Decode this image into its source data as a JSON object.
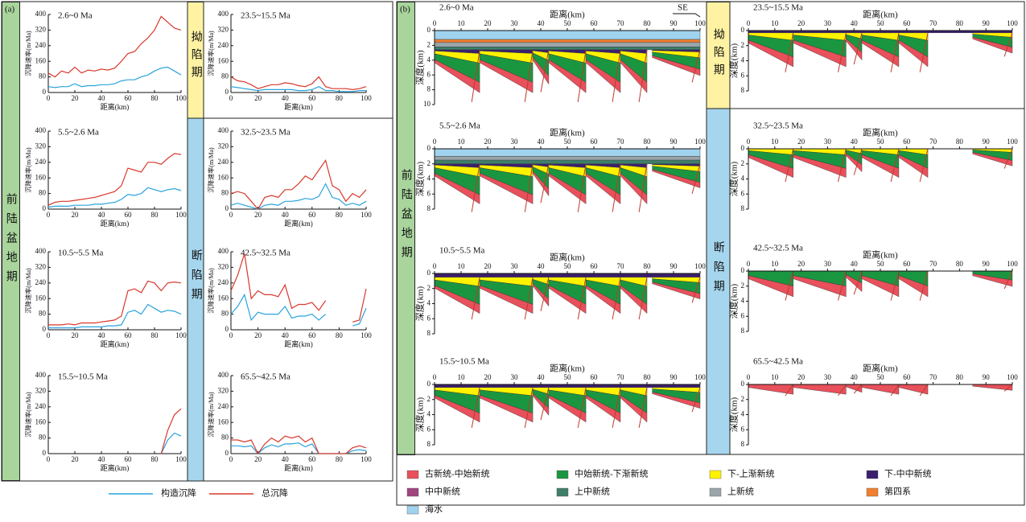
{
  "panel_a": {
    "label": "(a)",
    "stage_foreland": "前陆盆地期",
    "stage_sag": "拗陷期",
    "stage_rift": "断陷期"
  },
  "chart_data": [
    {
      "type": "line",
      "title": "2.6~0 Ma",
      "xlabel": "距离(km)",
      "ylabel": "沉降速率(m/Ma)",
      "x": [
        0,
        5,
        10,
        15,
        20,
        25,
        30,
        35,
        40,
        45,
        50,
        55,
        60,
        65,
        70,
        75,
        80,
        85,
        90,
        95,
        100
      ],
      "xlim": [
        0,
        100
      ],
      "ylim": [
        0,
        400
      ],
      "xticks": [
        0,
        20,
        40,
        60,
        80,
        100
      ],
      "yticks": [
        0,
        80,
        160,
        240,
        320,
        400
      ],
      "series": [
        {
          "name": "构造沉降",
          "color": "#2aa3dc",
          "values": [
            30,
            25,
            30,
            30,
            45,
            30,
            35,
            35,
            40,
            40,
            45,
            60,
            65,
            65,
            80,
            90,
            110,
            125,
            130,
            110,
            90
          ]
        },
        {
          "name": "总沉降",
          "color": "#d9382c",
          "values": [
            100,
            80,
            110,
            100,
            130,
            100,
            115,
            110,
            120,
            115,
            125,
            160,
            200,
            210,
            250,
            280,
            320,
            390,
            360,
            330,
            320
          ]
        }
      ]
    },
    {
      "type": "line",
      "title": "5.5~2.6 Ma",
      "xlabel": "距离(km)",
      "ylabel": "沉降速率(m/Ma)",
      "x": [
        0,
        5,
        10,
        15,
        20,
        25,
        30,
        35,
        40,
        45,
        50,
        55,
        60,
        65,
        70,
        75,
        80,
        85,
        90,
        95,
        100
      ],
      "xlim": [
        0,
        100
      ],
      "ylim": [
        0,
        400
      ],
      "xticks": [
        0,
        20,
        40,
        60,
        80,
        100
      ],
      "yticks": [
        0,
        80,
        160,
        240,
        320,
        400
      ],
      "series": [
        {
          "color": "#2aa3dc",
          "values": [
            10,
            15,
            15,
            15,
            20,
            20,
            20,
            25,
            25,
            30,
            35,
            50,
            75,
            70,
            80,
            110,
            100,
            90,
            100,
            105,
            95
          ]
        },
        {
          "color": "#d9382c",
          "values": [
            20,
            35,
            40,
            40,
            45,
            50,
            55,
            60,
            70,
            80,
            90,
            120,
            210,
            200,
            190,
            240,
            240,
            230,
            260,
            285,
            280
          ]
        }
      ]
    },
    {
      "type": "line",
      "title": "10.5~5.5 Ma",
      "xlabel": "距离(km)",
      "ylabel": "沉降速率(m/Ma)",
      "x": [
        0,
        5,
        10,
        15,
        20,
        25,
        30,
        35,
        40,
        45,
        50,
        55,
        60,
        65,
        70,
        75,
        80,
        85,
        90,
        95,
        100
      ],
      "xlim": [
        0,
        100
      ],
      "ylim": [
        0,
        400
      ],
      "xticks": [
        0,
        20,
        40,
        60,
        80,
        100
      ],
      "yticks": [
        0,
        80,
        160,
        240,
        320,
        400
      ],
      "series": [
        {
          "color": "#2aa3dc",
          "values": [
            10,
            10,
            10,
            10,
            10,
            15,
            15,
            15,
            15,
            20,
            20,
            25,
            90,
            100,
            80,
            130,
            110,
            90,
            100,
            95,
            80
          ]
        },
        {
          "color": "#d9382c",
          "values": [
            25,
            25,
            25,
            30,
            25,
            35,
            35,
            35,
            40,
            45,
            50,
            70,
            200,
            210,
            190,
            250,
            240,
            200,
            240,
            245,
            240
          ]
        }
      ]
    },
    {
      "type": "line",
      "title": "15.5~10.5 Ma",
      "xlabel": "距离(km)",
      "ylabel": "沉降速率(m/Ma)",
      "x": [
        0,
        5,
        10,
        15,
        20,
        25,
        30,
        35,
        40,
        45,
        50,
        55,
        60,
        65,
        70,
        75,
        80,
        85,
        90,
        95,
        100
      ],
      "xlim": [
        0,
        100
      ],
      "ylim": [
        0,
        400
      ],
      "xticks": [
        0,
        20,
        40,
        60,
        80,
        100
      ],
      "yticks": [
        0,
        80,
        160,
        240,
        320,
        400
      ],
      "series": [
        {
          "color": "#2aa3dc",
          "values": [
            null,
            null,
            null,
            null,
            null,
            null,
            null,
            null,
            null,
            null,
            null,
            null,
            null,
            null,
            null,
            null,
            null,
            0,
            70,
            105,
            90
          ]
        },
        {
          "color": "#d9382c",
          "values": [
            null,
            null,
            null,
            null,
            null,
            null,
            null,
            null,
            null,
            null,
            null,
            null,
            null,
            null,
            null,
            null,
            null,
            0,
            120,
            200,
            230
          ]
        }
      ]
    },
    {
      "type": "line",
      "title": "23.5~15.5 Ma",
      "xlabel": "距离(km)",
      "ylabel": "沉降速率(m/Ma)",
      "x": [
        0,
        5,
        10,
        15,
        20,
        25,
        30,
        35,
        40,
        45,
        50,
        55,
        60,
        65,
        70,
        75,
        80,
        85,
        90,
        95,
        100
      ],
      "xlim": [
        0,
        100
      ],
      "ylim": [
        0,
        400
      ],
      "xticks": [
        0,
        20,
        40,
        60,
        80,
        100
      ],
      "yticks": [
        0,
        80,
        160,
        240,
        320,
        400
      ],
      "series": [
        {
          "color": "#2aa3dc",
          "values": [
            30,
            25,
            20,
            15,
            10,
            15,
            15,
            15,
            15,
            15,
            10,
            10,
            15,
            30,
            10,
            10,
            5,
            5,
            5,
            10,
            10
          ]
        },
        {
          "color": "#d9382c",
          "values": [
            80,
            60,
            55,
            40,
            20,
            30,
            40,
            40,
            50,
            45,
            35,
            30,
            45,
            80,
            30,
            20,
            20,
            20,
            15,
            20,
            30
          ]
        }
      ]
    },
    {
      "type": "line",
      "title": "32.5~23.5 Ma",
      "xlabel": "距离(km)",
      "ylabel": "沉降速率(m/Ma)",
      "x": [
        0,
        5,
        10,
        15,
        20,
        25,
        30,
        35,
        40,
        45,
        50,
        55,
        60,
        65,
        70,
        75,
        80,
        85,
        90,
        95,
        100
      ],
      "xlim": [
        0,
        100
      ],
      "ylim": [
        0,
        400
      ],
      "xticks": [
        0,
        20,
        40,
        60,
        80,
        100
      ],
      "yticks": [
        0,
        80,
        160,
        240,
        320,
        400
      ],
      "series": [
        {
          "color": "#2aa3dc",
          "values": [
            20,
            30,
            20,
            10,
            0,
            20,
            25,
            20,
            40,
            40,
            45,
            55,
            50,
            65,
            130,
            60,
            50,
            20,
            30,
            20,
            40
          ]
        },
        {
          "color": "#d9382c",
          "values": [
            80,
            90,
            80,
            40,
            0,
            60,
            70,
            60,
            100,
            100,
            130,
            170,
            150,
            200,
            250,
            120,
            100,
            40,
            80,
            60,
            100
          ]
        }
      ]
    },
    {
      "type": "line",
      "title": "42.5~32.5 Ma",
      "xlabel": "距离(km)",
      "ylabel": "沉降速率(m/Ma)",
      "x": [
        0,
        5,
        10,
        15,
        20,
        25,
        30,
        35,
        40,
        45,
        50,
        55,
        60,
        65,
        70,
        75,
        80,
        85,
        90,
        95,
        100
      ],
      "xlim": [
        0,
        100
      ],
      "ylim": [
        0,
        400
      ],
      "xticks": [
        0,
        20,
        40,
        60,
        80,
        100
      ],
      "yticks": [
        0,
        80,
        160,
        240,
        320,
        400
      ],
      "series": [
        {
          "color": "#2aa3dc",
          "values": [
            80,
            120,
            180,
            50,
            90,
            80,
            80,
            80,
            120,
            60,
            70,
            70,
            80,
            50,
            80,
            null,
            null,
            null,
            20,
            30,
            110
          ]
        },
        {
          "color": "#d9382c",
          "values": [
            200,
            280,
            390,
            160,
            200,
            180,
            180,
            170,
            230,
            110,
            130,
            130,
            140,
            100,
            150,
            null,
            null,
            null,
            40,
            50,
            210
          ]
        }
      ]
    },
    {
      "type": "line",
      "title": "65.5~42.5 Ma",
      "xlabel": "距离(km)",
      "ylabel": "沉降速率(m/Ma)",
      "x": [
        0,
        5,
        10,
        15,
        20,
        25,
        30,
        35,
        40,
        45,
        50,
        55,
        60,
        65,
        70,
        75,
        80,
        85,
        90,
        95,
        100
      ],
      "xlim": [
        0,
        100
      ],
      "ylim": [
        0,
        400
      ],
      "xticks": [
        0,
        20,
        40,
        60,
        80,
        100
      ],
      "yticks": [
        0,
        80,
        160,
        240,
        320,
        400
      ],
      "series": [
        {
          "color": "#2aa3dc",
          "values": [
            40,
            40,
            35,
            40,
            0,
            30,
            45,
            35,
            50,
            50,
            55,
            35,
            50,
            0,
            0,
            0,
            0,
            0,
            15,
            20,
            15
          ]
        },
        {
          "color": "#d9382c",
          "values": [
            70,
            70,
            60,
            70,
            0,
            50,
            80,
            60,
            90,
            80,
            90,
            60,
            80,
            0,
            0,
            0,
            0,
            0,
            30,
            40,
            30
          ]
        }
      ]
    }
  ],
  "panel_b": {
    "label": "(b)",
    "direction": "SE",
    "stage_foreland": "前陆盆地期",
    "stage_sag": "拗陷期",
    "stage_rift": "断陷期",
    "sections": [
      {
        "title": "2.6~0 Ma",
        "xlabel": "距离(km)",
        "ylabel": "深度(km)",
        "xlim": [
          0,
          100
        ],
        "ylim": [
          0,
          10
        ],
        "xticks": [
          0,
          10,
          20,
          30,
          40,
          50,
          60,
          70,
          80,
          90,
          100
        ],
        "yticks": [
          0,
          2,
          4,
          6,
          8,
          10
        ]
      },
      {
        "title": "5.5~2.6 Ma",
        "xlabel": "距离(km)",
        "ylabel": "深度(km)",
        "xlim": [
          0,
          100
        ],
        "ylim": [
          0,
          8
        ],
        "xticks": [
          0,
          10,
          20,
          30,
          40,
          50,
          60,
          70,
          80,
          90,
          100
        ],
        "yticks": [
          0,
          2,
          4,
          6,
          8
        ]
      },
      {
        "title": "10.5~5.5 Ma",
        "xlabel": "距离(km)",
        "ylabel": "深度(km)",
        "xlim": [
          0,
          100
        ],
        "ylim": [
          0,
          8
        ],
        "xticks": [
          0,
          10,
          20,
          30,
          40,
          50,
          60,
          70,
          80,
          90,
          100
        ],
        "yticks": [
          0,
          2,
          4,
          6,
          8
        ]
      },
      {
        "title": "15.5~10.5 Ma",
        "xlabel": "距离(km)",
        "ylabel": "深度(km)",
        "xlim": [
          0,
          100
        ],
        "ylim": [
          0,
          8
        ],
        "xticks": [
          0,
          10,
          20,
          30,
          40,
          50,
          60,
          70,
          80,
          90,
          100
        ],
        "yticks": [
          0,
          2,
          4,
          6,
          8
        ]
      },
      {
        "title": "23.5~15.5 Ma",
        "xlabel": "距离(km)",
        "ylabel": "深度(km)",
        "xlim": [
          0,
          100
        ],
        "ylim": [
          0,
          8
        ],
        "xticks": [
          0,
          10,
          20,
          30,
          40,
          50,
          60,
          70,
          80,
          90,
          100
        ],
        "yticks": [
          0,
          2,
          4,
          6,
          8
        ]
      },
      {
        "title": "32.5~23.5 Ma",
        "xlabel": "距离(km)",
        "ylabel": "深度(km)",
        "xlim": [
          0,
          100
        ],
        "ylim": [
          0,
          8
        ],
        "xticks": [
          0,
          10,
          20,
          30,
          40,
          50,
          60,
          70,
          80,
          90,
          100
        ],
        "yticks": [
          0,
          2,
          4,
          6,
          8
        ]
      },
      {
        "title": "42.5~32.5 Ma",
        "xlabel": "距离(km)",
        "ylabel": "深度(km)",
        "xlim": [
          0,
          100
        ],
        "ylim": [
          0,
          8
        ],
        "xticks": [
          0,
          10,
          20,
          30,
          40,
          50,
          60,
          70,
          80,
          90,
          100
        ],
        "yticks": [
          0,
          2,
          4,
          6,
          8
        ]
      },
      {
        "title": "65.5~42.5 Ma",
        "xlabel": "距离(km)",
        "ylabel": "深度(km)",
        "xlim": [
          0,
          100
        ],
        "ylim": [
          0,
          8
        ],
        "xticks": [
          0,
          10,
          20,
          30,
          40,
          50,
          60,
          70,
          80,
          90,
          100
        ],
        "yticks": [
          0,
          2,
          4,
          6,
          8
        ]
      }
    ],
    "legend": [
      {
        "name": "古新统-中始新统",
        "color": "#e8505b"
      },
      {
        "name": "中始新统-下渐新统",
        "color": "#1a9641"
      },
      {
        "name": "下-上渐新统",
        "color": "#fff200"
      },
      {
        "name": "下-中中新统",
        "color": "#3b1f6e"
      },
      {
        "name": "中中新统",
        "color": "#a0457e"
      },
      {
        "name": "上中新统",
        "color": "#3f7f6a"
      },
      {
        "name": "上新统",
        "color": "#9aa5aa"
      },
      {
        "name": "第四系",
        "color": "#f08030"
      },
      {
        "name": "海水",
        "color": "#9fd3ee"
      }
    ]
  }
}
